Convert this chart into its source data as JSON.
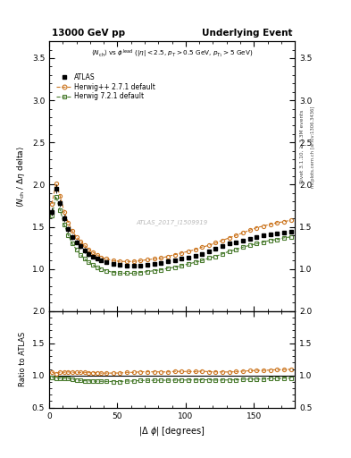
{
  "title_left": "13000 GeV pp",
  "title_right": "Underlying Event",
  "watermark": "ATLAS_2017_I1509919",
  "rivet_label": "Rivet 3.1.10, ≥ 3.3M events",
  "mcplots_label": "mcplots.cern.ch [arXiv:1306.3436]",
  "ylim_main": [
    0.5,
    3.7
  ],
  "ylim_ratio": [
    0.5,
    2.0
  ],
  "yticks_main": [
    1.0,
    1.5,
    2.0,
    2.5,
    3.0,
    3.5
  ],
  "yticks_ratio": [
    0.5,
    1.0,
    1.5,
    2.0
  ],
  "xlim": [
    0,
    180
  ],
  "xticks": [
    0,
    50,
    100,
    150
  ],
  "atlas_color": "#000000",
  "herwig_pp_color": "#cc7722",
  "herwig7_color": "#4a7c2f",
  "atlas_x": [
    2.0,
    5.0,
    8.0,
    11.0,
    14.0,
    17.0,
    20.0,
    23.0,
    26.0,
    29.0,
    32.0,
    35.0,
    38.0,
    42.0,
    47.0,
    52.0,
    57.0,
    62.0,
    67.0,
    72.0,
    77.0,
    82.0,
    87.0,
    92.0,
    97.0,
    102.0,
    107.0,
    112.0,
    117.0,
    122.0,
    127.0,
    132.0,
    137.0,
    142.0,
    147.0,
    152.0,
    157.0,
    162.0,
    167.0,
    172.0,
    177.0
  ],
  "atlas_y": [
    1.68,
    1.95,
    1.78,
    1.6,
    1.47,
    1.38,
    1.32,
    1.27,
    1.22,
    1.18,
    1.15,
    1.12,
    1.1,
    1.08,
    1.06,
    1.05,
    1.04,
    1.04,
    1.04,
    1.05,
    1.06,
    1.07,
    1.09,
    1.1,
    1.12,
    1.14,
    1.16,
    1.18,
    1.21,
    1.24,
    1.27,
    1.3,
    1.32,
    1.34,
    1.36,
    1.38,
    1.4,
    1.41,
    1.42,
    1.43,
    1.44
  ],
  "atlas_yerr": [
    0.05,
    0.05,
    0.04,
    0.04,
    0.04,
    0.03,
    0.03,
    0.03,
    0.03,
    0.03,
    0.02,
    0.02,
    0.02,
    0.02,
    0.02,
    0.02,
    0.02,
    0.02,
    0.02,
    0.02,
    0.02,
    0.02,
    0.02,
    0.02,
    0.02,
    0.02,
    0.02,
    0.02,
    0.02,
    0.02,
    0.02,
    0.02,
    0.02,
    0.02,
    0.02,
    0.02,
    0.02,
    0.02,
    0.02,
    0.02,
    0.02
  ],
  "herwig_pp_x": [
    2.0,
    5.0,
    8.0,
    11.0,
    14.0,
    17.0,
    20.0,
    23.0,
    26.0,
    29.0,
    32.0,
    35.0,
    38.0,
    42.0,
    47.0,
    52.0,
    57.0,
    62.0,
    67.0,
    72.0,
    77.0,
    82.0,
    87.0,
    92.0,
    97.0,
    102.0,
    107.0,
    112.0,
    117.0,
    122.0,
    127.0,
    132.0,
    137.0,
    142.0,
    147.0,
    152.0,
    157.0,
    162.0,
    167.0,
    172.0,
    177.0
  ],
  "herwig_pp_y": [
    1.77,
    2.01,
    1.87,
    1.68,
    1.55,
    1.45,
    1.38,
    1.33,
    1.28,
    1.23,
    1.2,
    1.17,
    1.14,
    1.12,
    1.1,
    1.09,
    1.09,
    1.09,
    1.1,
    1.11,
    1.12,
    1.13,
    1.15,
    1.17,
    1.19,
    1.21,
    1.23,
    1.26,
    1.28,
    1.31,
    1.34,
    1.37,
    1.4,
    1.43,
    1.46,
    1.49,
    1.51,
    1.53,
    1.55,
    1.56,
    1.58
  ],
  "herwig7_x": [
    2.0,
    5.0,
    8.0,
    11.0,
    14.0,
    17.0,
    20.0,
    23.0,
    26.0,
    29.0,
    32.0,
    35.0,
    38.0,
    42.0,
    47.0,
    52.0,
    57.0,
    62.0,
    67.0,
    72.0,
    77.0,
    82.0,
    87.0,
    92.0,
    97.0,
    102.0,
    107.0,
    112.0,
    117.0,
    122.0,
    127.0,
    132.0,
    137.0,
    142.0,
    147.0,
    152.0,
    157.0,
    162.0,
    167.0,
    172.0,
    177.0
  ],
  "herwig7_y": [
    1.63,
    1.86,
    1.7,
    1.53,
    1.4,
    1.3,
    1.23,
    1.17,
    1.12,
    1.08,
    1.05,
    1.02,
    1.0,
    0.98,
    0.96,
    0.95,
    0.95,
    0.95,
    0.96,
    0.97,
    0.98,
    0.99,
    1.01,
    1.02,
    1.04,
    1.06,
    1.08,
    1.1,
    1.13,
    1.15,
    1.18,
    1.21,
    1.23,
    1.26,
    1.28,
    1.3,
    1.32,
    1.34,
    1.35,
    1.37,
    1.38
  ]
}
